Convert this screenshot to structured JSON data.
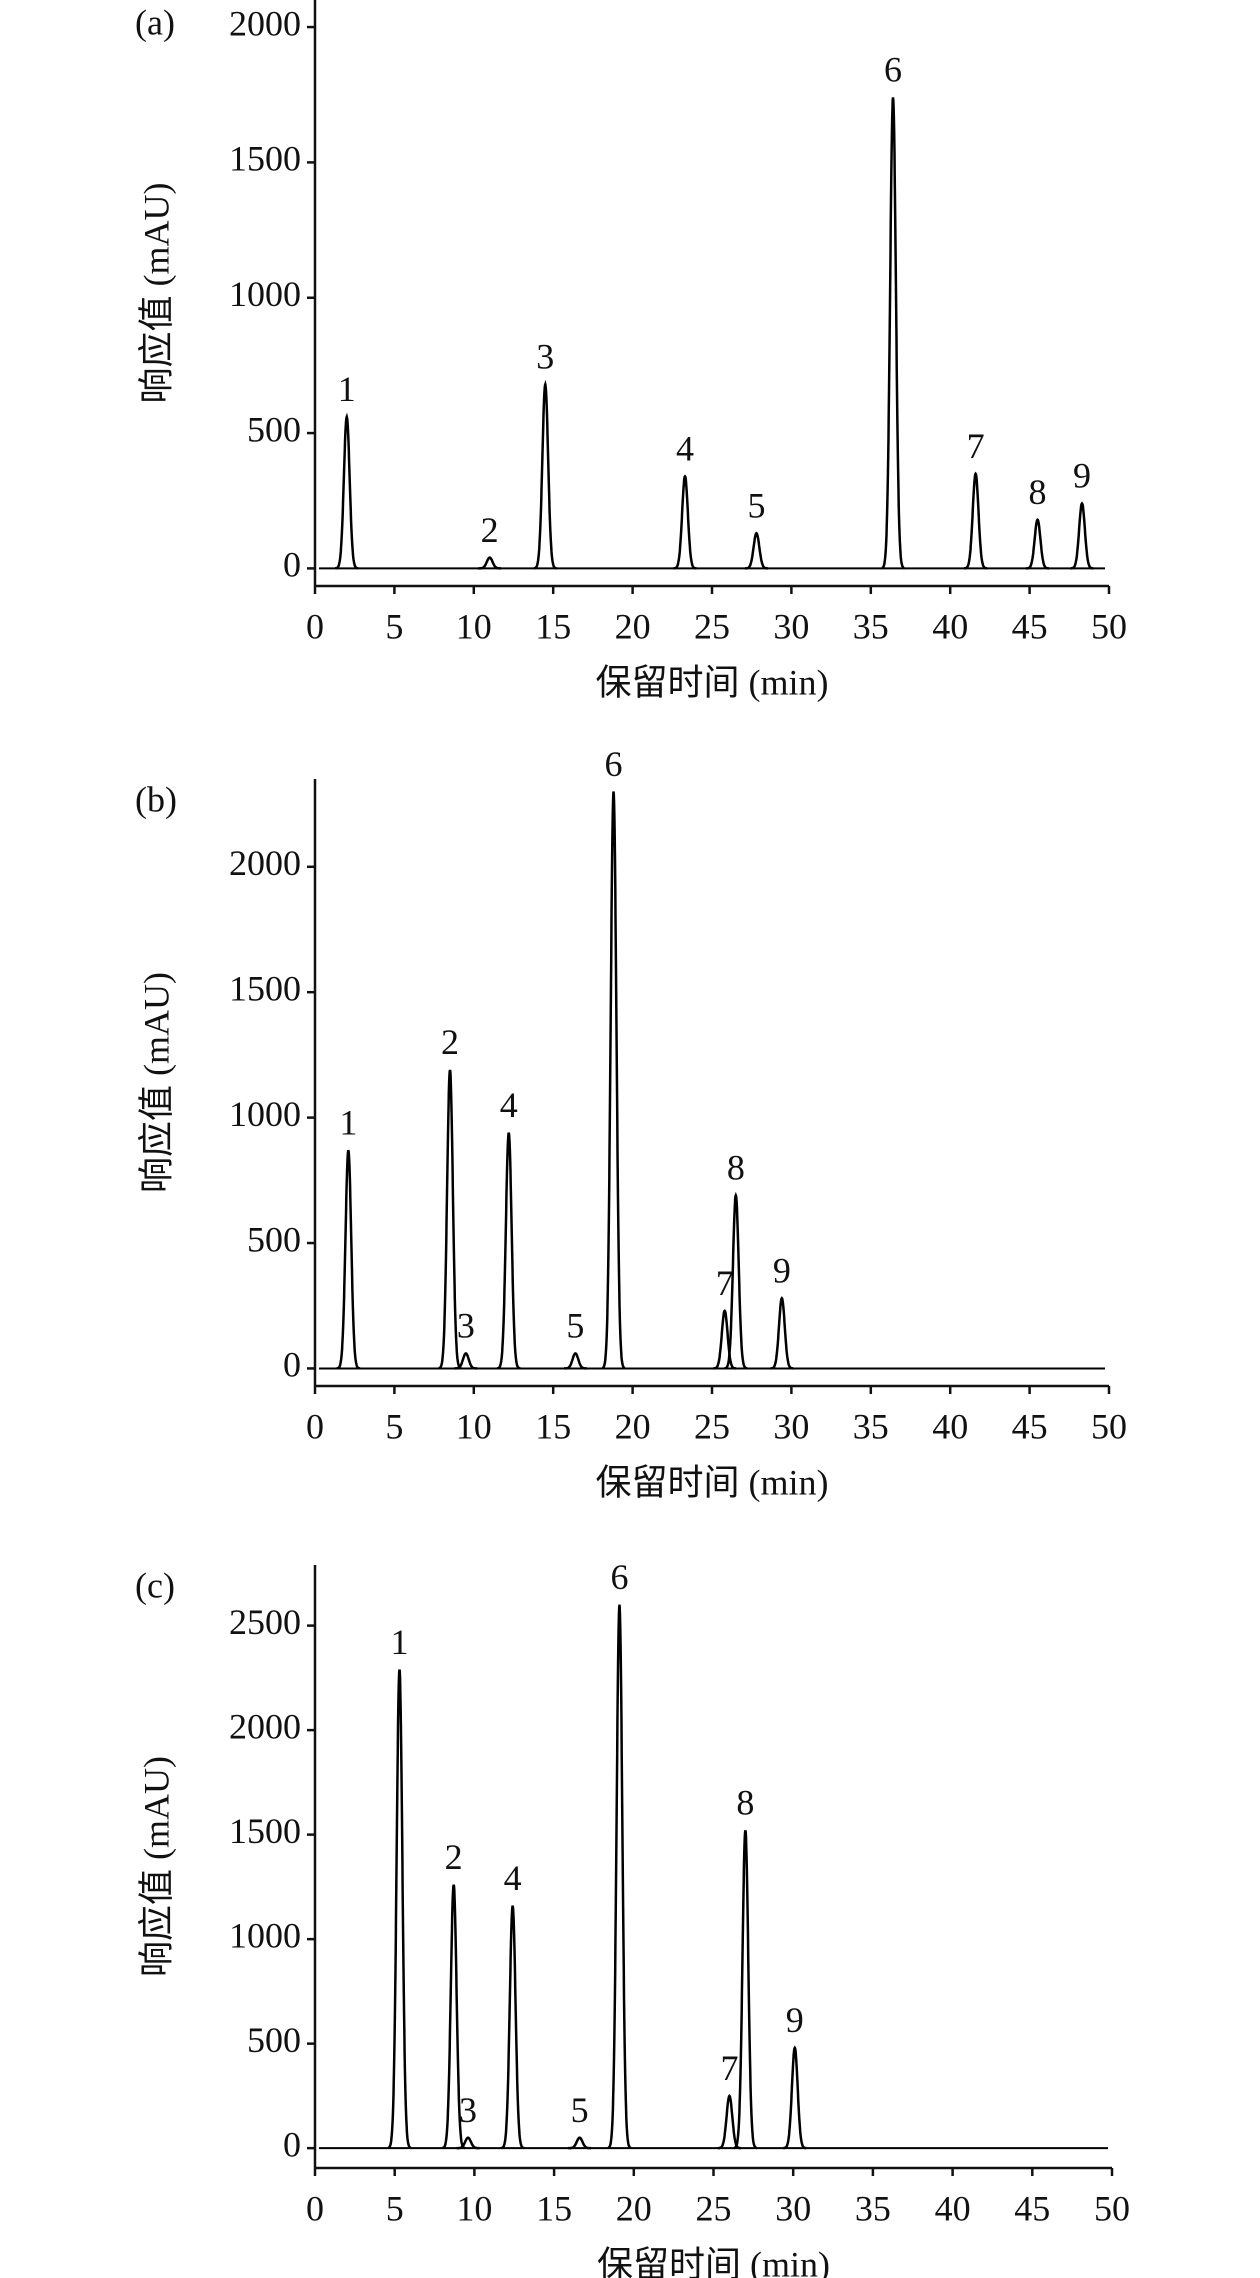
{
  "chart_data": [
    {
      "type": "chromatogram",
      "panel_label": "(a)",
      "xlabel": "保留时间 (min)",
      "ylabel": "响应值 (mAU)",
      "xlim": [
        0,
        50
      ],
      "xticks": [
        0,
        5,
        10,
        15,
        20,
        25,
        30,
        35,
        40,
        45,
        50
      ],
      "ylim": [
        -65,
        2100
      ],
      "yticks": [
        0,
        500,
        1000,
        1500,
        2000
      ],
      "x": [
        2,
        11,
        14.5,
        23.3,
        27.8,
        36.4,
        41.6,
        45.5,
        48.3
      ],
      "values": [
        560,
        40,
        680,
        340,
        130,
        1740,
        350,
        180,
        240
      ],
      "peak_labels": [
        "1",
        "2",
        "3",
        "4",
        "5",
        "6",
        "7",
        "8",
        "9"
      ],
      "color": "#000000"
    },
    {
      "type": "chromatogram",
      "panel_label": "(b)",
      "xlabel": "保留时间 (min)",
      "ylabel": "响应值 (mAU)",
      "xlim": [
        0,
        50
      ],
      "xticks": [
        0,
        5,
        10,
        15,
        20,
        25,
        30,
        35,
        40,
        45,
        50
      ],
      "ylim": [
        -70,
        2350
      ],
      "yticks": [
        0,
        500,
        1000,
        1500,
        2000
      ],
      "x": [
        2.1,
        8.5,
        9.5,
        12.2,
        16.4,
        18.8,
        25.8,
        26.5,
        29.4
      ],
      "values": [
        870,
        1190,
        60,
        940,
        60,
        2300,
        230,
        690,
        280
      ],
      "peak_labels": [
        "1",
        "2",
        "3",
        "4",
        "5",
        "6",
        "7",
        "8",
        "9"
      ],
      "color": "#000000"
    },
    {
      "type": "chromatogram",
      "panel_label": "(c)",
      "xlabel": "保留时间 (min)",
      "ylabel": "响应值 (mAU)",
      "xlim": [
        0,
        50
      ],
      "xticks": [
        0,
        5,
        10,
        15,
        20,
        25,
        30,
        35,
        40,
        45,
        50
      ],
      "ylim": [
        -95,
        2790
      ],
      "yticks": [
        0,
        500,
        1000,
        1500,
        2000,
        2500
      ],
      "x": [
        5.3,
        8.7,
        9.6,
        12.4,
        16.6,
        19.1,
        26.0,
        27.0,
        30.1
      ],
      "values": [
        2290,
        1260,
        50,
        1160,
        50,
        2600,
        250,
        1520,
        480
      ],
      "peak_labels": [
        "1",
        "2",
        "3",
        "4",
        "5",
        "6",
        "7",
        "8",
        "9"
      ],
      "color": "#000000"
    }
  ]
}
